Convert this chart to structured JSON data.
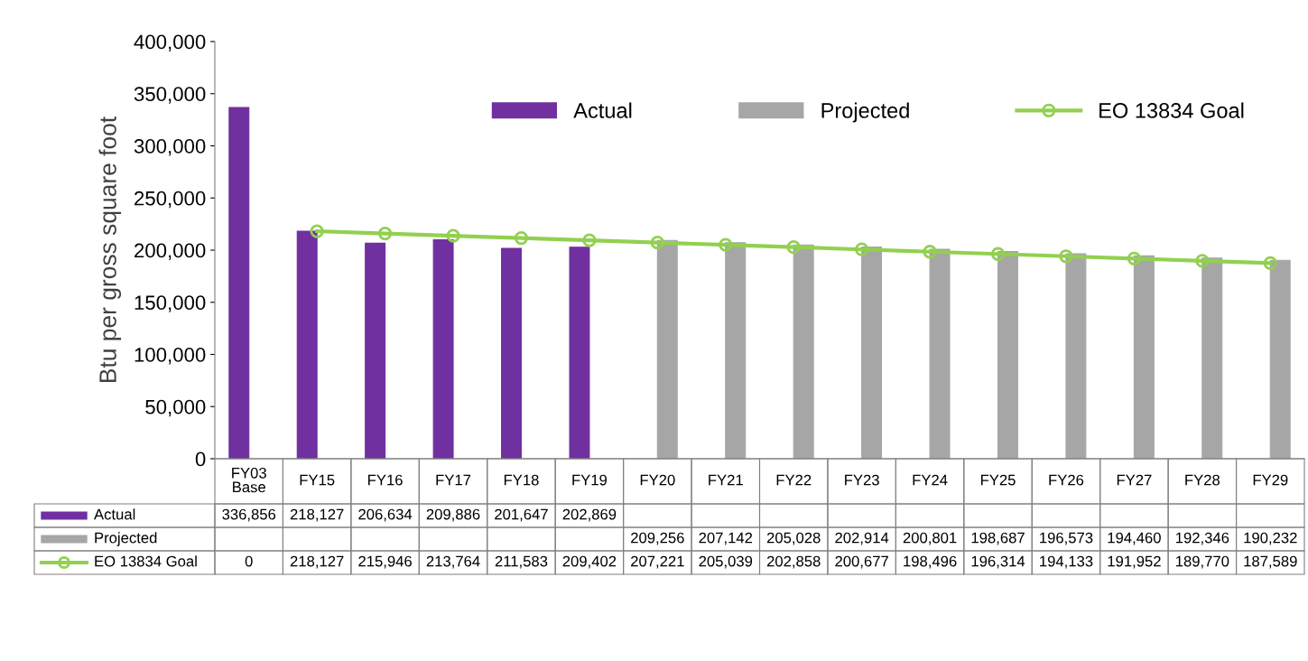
{
  "chart_data": {
    "type": "bar",
    "ylabel": "Btu per gross square foot",
    "categories": [
      "FY03\nBase",
      "FY15",
      "FY16",
      "FY17",
      "FY18",
      "FY19",
      "FY20",
      "FY21",
      "FY22",
      "FY23",
      "FY24",
      "FY25",
      "FY26",
      "FY27",
      "FY28",
      "FY29"
    ],
    "series": [
      {
        "name": "Actual",
        "type": "bar",
        "color": "#7030a0",
        "values": [
          336856,
          218127,
          206634,
          209886,
          201647,
          202869,
          null,
          null,
          null,
          null,
          null,
          null,
          null,
          null,
          null,
          null
        ],
        "value_labels": [
          "336,856",
          "218,127",
          "206,634",
          "209,886",
          "201,647",
          "202,869",
          null,
          null,
          null,
          null,
          null,
          null,
          null,
          null,
          null,
          null
        ]
      },
      {
        "name": "Projected",
        "type": "bar",
        "color": "#a6a6a6",
        "values": [
          null,
          null,
          null,
          null,
          null,
          null,
          209256,
          207142,
          205028,
          202914,
          200801,
          198687,
          196573,
          194460,
          192346,
          190232
        ],
        "value_labels": [
          null,
          null,
          null,
          null,
          null,
          null,
          "209,256",
          "207,142",
          "205,028",
          "202,914",
          "200,801",
          "198,687",
          "196,573",
          "194,460",
          "192,346",
          "190,232"
        ]
      },
      {
        "name": "EO 13834 Goal",
        "type": "line",
        "color": "#92d050",
        "marker": "circle",
        "values": [
          null,
          218127,
          215946,
          213764,
          211583,
          209402,
          207221,
          205039,
          202858,
          200677,
          198496,
          196314,
          194133,
          191952,
          189770,
          187589
        ],
        "value_labels": [
          "0",
          "218,127",
          "215,946",
          "213,764",
          "211,583",
          "209,402",
          "207,221",
          "205,039",
          "202,858",
          "200,677",
          "198,496",
          "196,314",
          "194,133",
          "191,952",
          "189,770",
          "187,589"
        ]
      }
    ],
    "ylim": [
      0,
      400000
    ],
    "yticks": [
      0,
      {
        "value": 50000,
        "label": "50,000"
      },
      {
        "value": 100000,
        "label": "100,000"
      },
      {
        "value": 150000,
        "label": "150,000"
      },
      {
        "value": 200000,
        "label": "200,000"
      },
      {
        "value": 250000,
        "label": "250,000"
      },
      {
        "value": 300000,
        "label": "300,000"
      },
      {
        "value": 350000,
        "label": "350,000"
      },
      {
        "value": 400000,
        "label": "400,000"
      }
    ],
    "grid": false,
    "legend": "top"
  }
}
